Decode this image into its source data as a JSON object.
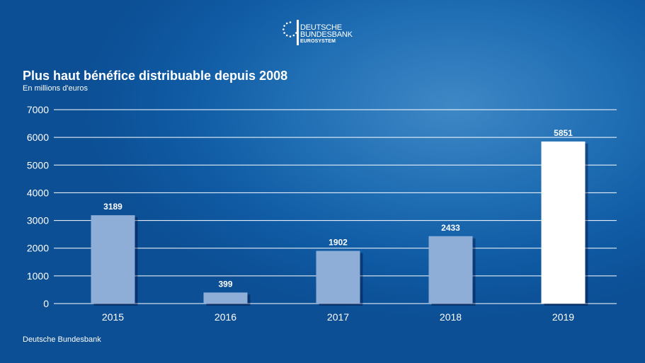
{
  "logo": {
    "line1": "DEUTSCHE",
    "line2": "BUNDESBANK",
    "line3": "EUROSYSTEM"
  },
  "footer": {
    "source": "Deutsche Bundesbank"
  },
  "colors": {
    "bar": "#8eaed8",
    "bar_highlight": "#ffffff",
    "gridline": "#ffffff"
  },
  "chart_data": {
    "type": "bar",
    "title": "Plus haut bénéfice distribuable depuis 2008",
    "subtitle": "En millions d'euros",
    "categories": [
      "2015",
      "2016",
      "2017",
      "2018",
      "2019"
    ],
    "values": [
      3189,
      399,
      1902,
      2433,
      5851
    ],
    "data_labels": [
      "3189",
      "399",
      "1902",
      "2433",
      "5851"
    ],
    "highlighted_category": "2019",
    "ylim": [
      0,
      7000
    ],
    "yticks": [
      0,
      1000,
      2000,
      3000,
      4000,
      5000,
      6000,
      7000
    ],
    "grid": true,
    "legend": "none"
  }
}
